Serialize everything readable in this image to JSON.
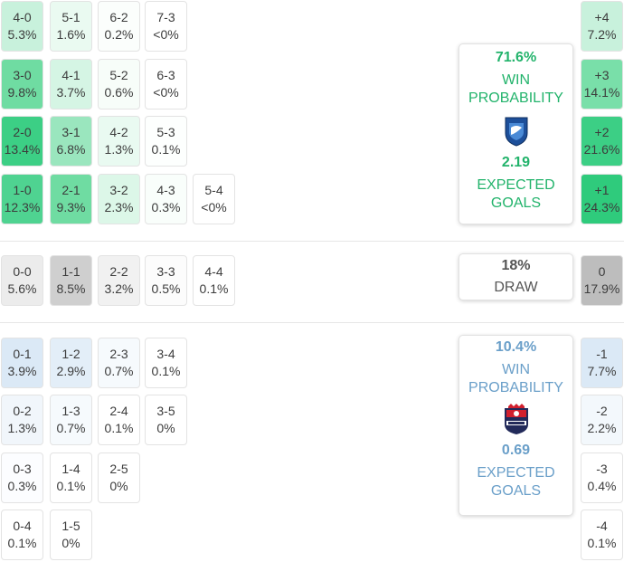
{
  "colors": {
    "home_accent": "#22b36b",
    "away_accent": "#6a9fc9",
    "draw_text": "#555555",
    "home_1": "#eafaf1",
    "home_2": "#c8f1dc",
    "home_3": "#8ee2b6",
    "home_4": "#3ccf85",
    "draw_1": "#ededed",
    "draw_2": "#cfcfcf",
    "draw_3": "#bdbdbd",
    "away_1": "#f3f8fc",
    "away_2": "#dbe9f6"
  },
  "home": {
    "scores": [
      [
        "4-0",
        "5.3%"
      ],
      [
        "5-1",
        "1.6%"
      ],
      [
        "6-2",
        "0.2%"
      ],
      [
        "7-3",
        "<0%"
      ],
      [
        "3-0",
        "9.8%"
      ],
      [
        "4-1",
        "3.7%"
      ],
      [
        "5-2",
        "0.6%"
      ],
      [
        "6-3",
        "<0%"
      ],
      [
        "2-0",
        "13.4%"
      ],
      [
        "3-1",
        "6.8%"
      ],
      [
        "4-2",
        "1.3%"
      ],
      [
        "5-3",
        "0.1%"
      ],
      [
        "1-0",
        "12.3%"
      ],
      [
        "2-1",
        "9.3%"
      ],
      [
        "3-2",
        "2.3%"
      ],
      [
        "4-3",
        "0.3%"
      ],
      [
        "5-4",
        "<0%"
      ]
    ],
    "margins": [
      [
        "+4",
        "7.2%"
      ],
      [
        "+3",
        "14.1%"
      ],
      [
        "+2",
        "21.6%"
      ],
      [
        "+1",
        "24.3%"
      ]
    ],
    "win_probability": "71.6%",
    "win_label": "WIN PROBABILITY",
    "expected_goals": "2.19",
    "xg_label": "EXPECTED GOALS",
    "logo_icon": "genk-shield-icon"
  },
  "draw": {
    "scores": [
      [
        "0-0",
        "5.6%"
      ],
      [
        "1-1",
        "8.5%"
      ],
      [
        "2-2",
        "3.2%"
      ],
      [
        "3-3",
        "0.5%"
      ],
      [
        "4-4",
        "0.1%"
      ]
    ],
    "margin": [
      "0",
      "17.9%"
    ],
    "probability": "18%",
    "label": "DRAW"
  },
  "away": {
    "scores": [
      [
        "0-1",
        "3.9%"
      ],
      [
        "1-2",
        "2.9%"
      ],
      [
        "2-3",
        "0.7%"
      ],
      [
        "3-4",
        "0.1%"
      ],
      [
        "0-2",
        "1.3%"
      ],
      [
        "1-3",
        "0.7%"
      ],
      [
        "2-4",
        "0.1%"
      ],
      [
        "3-5",
        "0%"
      ],
      [
        "0-3",
        "0.3%"
      ],
      [
        "1-4",
        "0.1%"
      ],
      [
        "2-5",
        "0%"
      ],
      [
        "0-4",
        "0.1%"
      ],
      [
        "1-5",
        "0%"
      ]
    ],
    "margins": [
      [
        "-1",
        "7.7%"
      ],
      [
        "-2",
        "2.2%"
      ],
      [
        "-3",
        "0.4%"
      ],
      [
        "-4",
        "0.1%"
      ]
    ],
    "win_probability": "10.4%",
    "win_label": "WIN PROBABILITY",
    "expected_goals": "0.69",
    "xg_label": "EXPECTED GOALS",
    "logo_icon": "fc-dinamo-crest-icon"
  }
}
